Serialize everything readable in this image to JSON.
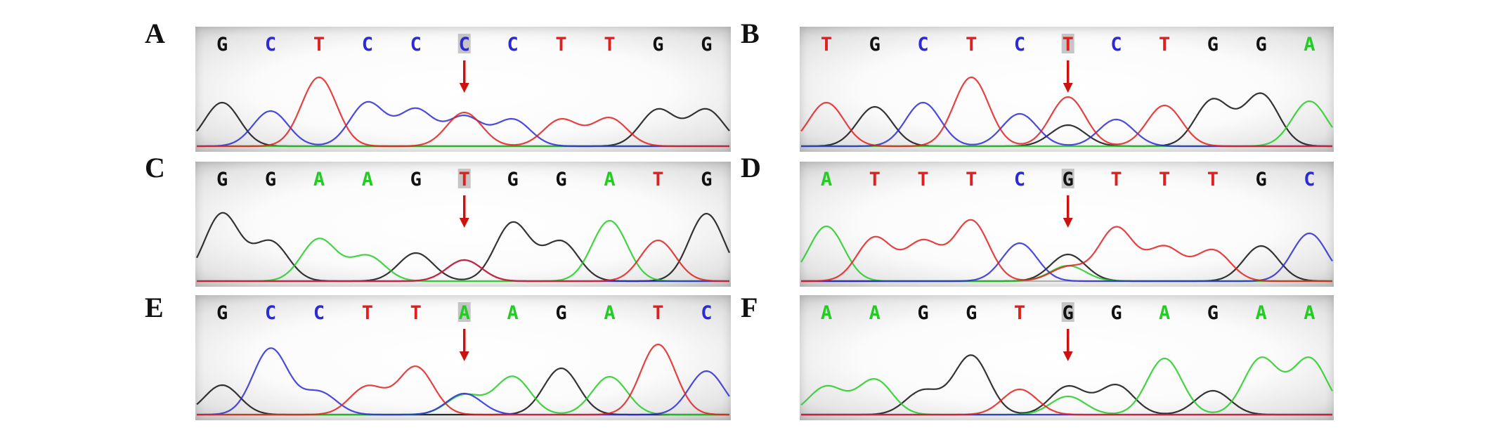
{
  "colors": {
    "A": "#22cc22",
    "C": "#2a2ad6",
    "G": "#111111",
    "T": "#e02020",
    "arrow": "#cc1111",
    "highlight": "#b8b8b8"
  },
  "panels": [
    {
      "label": "A",
      "bases": [
        "G",
        "C",
        "T",
        "C",
        "C",
        "C",
        "C",
        "T",
        "T",
        "G",
        "G"
      ],
      "highlight_index": 5,
      "peaks": [
        {
          "b": "G",
          "h": 0.62
        },
        {
          "b": "C",
          "h": 0.5
        },
        {
          "b": "T",
          "h": 0.98
        },
        {
          "b": "C",
          "h": 0.62
        },
        {
          "b": "C",
          "h": 0.52
        },
        {
          "b": "C",
          "h": 0.42,
          "extra": [
            {
              "b": "T",
              "h": 0.48
            }
          ]
        },
        {
          "b": "C",
          "h": 0.38
        },
        {
          "b": "T",
          "h": 0.38
        },
        {
          "b": "T",
          "h": 0.4
        },
        {
          "b": "G",
          "h": 0.52
        },
        {
          "b": "G",
          "h": 0.52
        }
      ]
    },
    {
      "label": "B",
      "bases": [
        "T",
        "G",
        "C",
        "T",
        "C",
        "T",
        "C",
        "T",
        "G",
        "G",
        "A"
      ],
      "highlight_index": 5,
      "peaks": [
        {
          "b": "T",
          "h": 0.62
        },
        {
          "b": "G",
          "h": 0.56
        },
        {
          "b": "C",
          "h": 0.62
        },
        {
          "b": "T",
          "h": 0.98
        },
        {
          "b": "C",
          "h": 0.46
        },
        {
          "b": "T",
          "h": 0.7,
          "extra": [
            {
              "b": "G",
              "h": 0.3
            }
          ]
        },
        {
          "b": "C",
          "h": 0.38
        },
        {
          "b": "T",
          "h": 0.58
        },
        {
          "b": "G",
          "h": 0.66
        },
        {
          "b": "G",
          "h": 0.74
        },
        {
          "b": "A",
          "h": 0.64
        }
      ]
    },
    {
      "label": "C",
      "bases": [
        "G",
        "G",
        "A",
        "A",
        "G",
        "T",
        "G",
        "G",
        "A",
        "T",
        "G"
      ],
      "highlight_index": 5,
      "peaks": [
        {
          "b": "G",
          "h": 0.96
        },
        {
          "b": "G",
          "h": 0.56
        },
        {
          "b": "A",
          "h": 0.6
        },
        {
          "b": "A",
          "h": 0.36
        },
        {
          "b": "G",
          "h": 0.4
        },
        {
          "b": "T",
          "h": 0.3,
          "extra": [
            {
              "b": "C",
              "h": 0.3
            }
          ]
        },
        {
          "b": "G",
          "h": 0.83
        },
        {
          "b": "G",
          "h": 0.56
        },
        {
          "b": "A",
          "h": 0.86
        },
        {
          "b": "T",
          "h": 0.58
        },
        {
          "b": "G",
          "h": 0.96
        }
      ]
    },
    {
      "label": "D",
      "bases": [
        "A",
        "T",
        "T",
        "T",
        "C",
        "G",
        "T",
        "T",
        "T",
        "G",
        "C"
      ],
      "highlight_index": 5,
      "peaks": [
        {
          "b": "A",
          "h": 0.78
        },
        {
          "b": "T",
          "h": 0.62
        },
        {
          "b": "T",
          "h": 0.56
        },
        {
          "b": "T",
          "h": 0.86
        },
        {
          "b": "C",
          "h": 0.54
        },
        {
          "b": "G",
          "h": 0.38,
          "extra": [
            {
              "b": "A",
              "h": 0.22
            },
            {
              "b": "T",
              "h": 0.2
            }
          ]
        },
        {
          "b": "T",
          "h": 0.76
        },
        {
          "b": "T",
          "h": 0.48
        },
        {
          "b": "T",
          "h": 0.44
        },
        {
          "b": "G",
          "h": 0.5
        },
        {
          "b": "C",
          "h": 0.68
        }
      ]
    },
    {
      "label": "E",
      "bases": [
        "G",
        "C",
        "C",
        "T",
        "T",
        "A",
        "A",
        "G",
        "A",
        "T",
        "C"
      ],
      "highlight_index": 5,
      "peaks": [
        {
          "b": "G",
          "h": 0.42
        },
        {
          "b": "C",
          "h": 0.94
        },
        {
          "b": "C",
          "h": 0.32
        },
        {
          "b": "T",
          "h": 0.4
        },
        {
          "b": "T",
          "h": 0.68
        },
        {
          "b": "A",
          "h": 0.28,
          "extra": [
            {
              "b": "C",
              "h": 0.3
            }
          ]
        },
        {
          "b": "A",
          "h": 0.54
        },
        {
          "b": "G",
          "h": 0.66
        },
        {
          "b": "A",
          "h": 0.54
        },
        {
          "b": "T",
          "h": 1.0
        },
        {
          "b": "C",
          "h": 0.62
        }
      ]
    },
    {
      "label": "F",
      "bases": [
        "A",
        "A",
        "G",
        "G",
        "T",
        "G",
        "G",
        "A",
        "G",
        "A",
        "A"
      ],
      "highlight_index": 5,
      "peaks": [
        {
          "b": "A",
          "h": 0.4
        },
        {
          "b": "A",
          "h": 0.5
        },
        {
          "b": "G",
          "h": 0.34
        },
        {
          "b": "G",
          "h": 0.84
        },
        {
          "b": "T",
          "h": 0.36
        },
        {
          "b": "G",
          "h": 0.4,
          "extra": [
            {
              "b": "A",
              "h": 0.26
            }
          ]
        },
        {
          "b": "G",
          "h": 0.42
        },
        {
          "b": "A",
          "h": 0.8
        },
        {
          "b": "G",
          "h": 0.34
        },
        {
          "b": "A",
          "h": 0.8
        },
        {
          "b": "A",
          "h": 0.8
        }
      ]
    }
  ]
}
